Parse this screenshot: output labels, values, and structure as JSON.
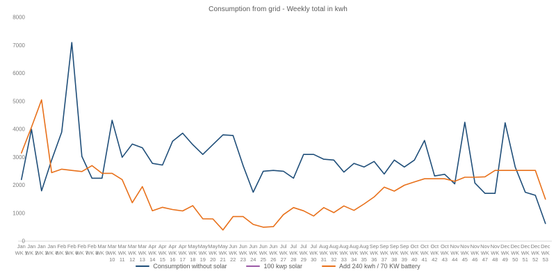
{
  "title": "Consumption from grid - Weekly total in kwh",
  "y_axis": {
    "ticks": [
      "0",
      "1000",
      "2000",
      "3000",
      "4000",
      "5000",
      "6000",
      "7000",
      "8000"
    ],
    "tick_values": [
      0,
      1000,
      2000,
      3000,
      4000,
      5000,
      6000,
      7000,
      8000
    ]
  },
  "x_axis": {
    "labels": [
      [
        "Jan",
        "WK 1"
      ],
      [
        "Jan",
        "WK 2"
      ],
      [
        "Jan",
        "WK 3"
      ],
      [
        "Jan",
        "WK 4"
      ],
      [
        "Feb",
        "WK 5"
      ],
      [
        "Feb",
        "WK 6"
      ],
      [
        "Feb",
        "WK 7"
      ],
      [
        "Feb",
        "WK 8"
      ],
      [
        "Mar",
        "WK 9"
      ],
      [
        "Mar",
        "WK",
        "10"
      ],
      [
        "Mar",
        "WK",
        "11"
      ],
      [
        "Mar",
        "WK",
        "12"
      ],
      [
        "Mar",
        "WK",
        "13"
      ],
      [
        "Apr",
        "WK",
        "14"
      ],
      [
        "Apr",
        "WK",
        "15"
      ],
      [
        "Apr",
        "WK",
        "16"
      ],
      [
        "Apr",
        "WK",
        "17"
      ],
      [
        "May",
        "WK",
        "18"
      ],
      [
        "May",
        "WK",
        "19"
      ],
      [
        "May",
        "WK",
        "20"
      ],
      [
        "May",
        "WK",
        "21"
      ],
      [
        "Jun",
        "WK",
        "22"
      ],
      [
        "Jun",
        "WK",
        "23"
      ],
      [
        "Jun",
        "WK",
        "24"
      ],
      [
        "Jun",
        "WK",
        "25"
      ],
      [
        "Jun",
        "WK",
        "26"
      ],
      [
        "Jul",
        "WK",
        "27"
      ],
      [
        "Jul",
        "WK",
        "28"
      ],
      [
        "Jul",
        "WK",
        "29"
      ],
      [
        "Jul",
        "WK",
        "30"
      ],
      [
        "Aug",
        "WK",
        "31"
      ],
      [
        "Aug",
        "WK",
        "32"
      ],
      [
        "Aug",
        "WK",
        "33"
      ],
      [
        "Aug",
        "WK",
        "34"
      ],
      [
        "Aug",
        "WK",
        "35"
      ],
      [
        "Sep",
        "WK",
        "36"
      ],
      [
        "Sep",
        "WK",
        "37"
      ],
      [
        "Sep",
        "WK",
        "38"
      ],
      [
        "Sep",
        "WK",
        "39"
      ],
      [
        "Oct",
        "WK",
        "40"
      ],
      [
        "Oct",
        "WK",
        "41"
      ],
      [
        "Oct",
        "WK",
        "42"
      ],
      [
        "Oct",
        "WK",
        "43"
      ],
      [
        "Nov",
        "WK",
        "44"
      ],
      [
        "Nov",
        "WK",
        "45"
      ],
      [
        "Nov",
        "WK",
        "46"
      ],
      [
        "Nov",
        "WK",
        "47"
      ],
      [
        "Nov",
        "WK",
        "48"
      ],
      [
        "Dec",
        "WK",
        "49"
      ],
      [
        "Dec",
        "WK",
        "50"
      ],
      [
        "Dec",
        "WK",
        "51"
      ],
      [
        "Dec",
        "WK",
        "52"
      ],
      [
        "Dec",
        "WK",
        "53"
      ]
    ]
  },
  "colors": {
    "axis_line": "#d9d9d9",
    "tick_text": "#7f7f7f",
    "title_text": "#595959"
  },
  "chart_data": {
    "type": "line",
    "title": "Consumption from grid - Weekly total in kwh",
    "xlabel": "",
    "ylabel": "",
    "ylim": [
      0,
      8000
    ],
    "grid": false,
    "legend_position": "bottom",
    "categories": [
      "Jan WK 1",
      "Jan WK 2",
      "Jan WK 3",
      "Jan WK 4",
      "Feb WK 5",
      "Feb WK 6",
      "Feb WK 7",
      "Feb WK 8",
      "Mar WK 9",
      "Mar WK 10",
      "Mar WK 11",
      "Mar WK 12",
      "Mar WK 13",
      "Apr WK 14",
      "Apr WK 15",
      "Apr WK 16",
      "Apr WK 17",
      "May WK 18",
      "May WK 19",
      "May WK 20",
      "May WK 21",
      "Jun WK 22",
      "Jun WK 23",
      "Jun WK 24",
      "Jun WK 25",
      "Jun WK 26",
      "Jul WK 27",
      "Jul WK 28",
      "Jul WK 29",
      "Jul WK 30",
      "Aug WK 31",
      "Aug WK 32",
      "Aug WK 33",
      "Aug WK 34",
      "Aug WK 35",
      "Sep WK 36",
      "Sep WK 37",
      "Sep WK 38",
      "Sep WK 39",
      "Oct WK 40",
      "Oct WK 41",
      "Oct WK 42",
      "Oct WK 43",
      "Nov WK 44",
      "Nov WK 45",
      "Nov WK 46",
      "Nov WK 47",
      "Nov WK 48",
      "Dec WK 49",
      "Dec WK 50",
      "Dec WK 51",
      "Dec WK 52",
      "Dec WK 53"
    ],
    "series": [
      {
        "name": "Consumption without solar",
        "color": "#1F4E79",
        "values": [
          2200,
          4000,
          1800,
          2900,
          3900,
          7100,
          3030,
          2250,
          2250,
          4320,
          3000,
          3470,
          3340,
          2780,
          2720,
          3570,
          3860,
          3450,
          3100,
          3450,
          3800,
          3780,
          2700,
          1750,
          2500,
          2530,
          2500,
          2250,
          3100,
          3100,
          2930,
          2900,
          2470,
          2780,
          2650,
          2850,
          2400,
          2900,
          2650,
          2900,
          3600,
          2330,
          2390,
          2050,
          4250,
          2080,
          1710,
          1710,
          4230,
          2650,
          1750,
          1640,
          630
        ]
      },
      {
        "name": "100 kwp solar",
        "color": "#9B59A6",
        "values": []
      },
      {
        "name": "Add 240 kwh / 70 KW battery",
        "color": "#E8701A",
        "values": [
          3150,
          4075,
          5050,
          2450,
          2575,
          2530,
          2490,
          2700,
          2425,
          2425,
          2200,
          1375,
          1950,
          1085,
          1210,
          1130,
          1080,
          1270,
          800,
          795,
          400,
          880,
          880,
          600,
          500,
          520,
          950,
          1200,
          1085,
          900,
          1200,
          1020,
          1260,
          1100,
          1330,
          1580,
          1930,
          1790,
          2000,
          2120,
          2230,
          2230,
          2230,
          2140,
          2285,
          2285,
          2300,
          2530,
          2530,
          2530,
          2530,
          2530,
          1500
        ]
      }
    ]
  }
}
